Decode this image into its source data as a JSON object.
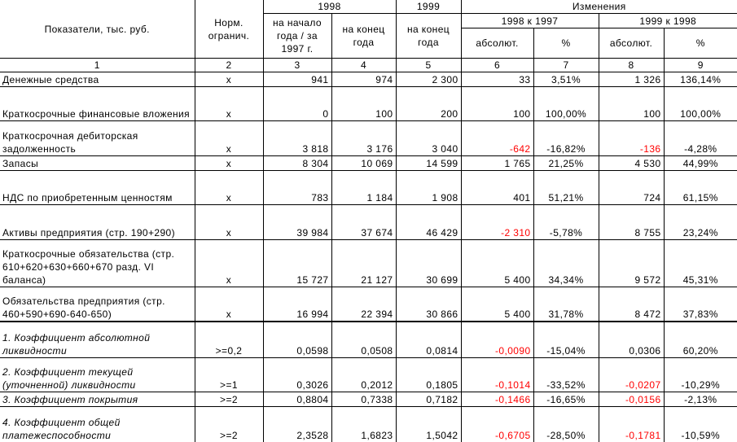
{
  "header": {
    "indicators": "Показатели, тыс. руб.",
    "norm": "Норм. огранич.",
    "y1998": "1998",
    "y1999": "1999",
    "changes": "Изменения",
    "start_year": "на начало года / за 1997 г.",
    "end_year_1998": "на конец года",
    "end_year_1999": "на конец года",
    "chg_98_97": "1998 к 1997",
    "chg_99_98": "1999 к 1998",
    "abs1": "абсолют.",
    "pct1": "%",
    "abs2": "абсолют.",
    "pct2": "%"
  },
  "col_numbers": [
    "1",
    "2",
    "3",
    "4",
    "5",
    "6",
    "7",
    "8",
    "9"
  ],
  "rows": [
    {
      "name": "Денежные средства",
      "norm": "x",
      "v3": "941",
      "v4": "974",
      "v5": "2 300",
      "v6": "33",
      "v7": "3,51%",
      "v8": "1 326",
      "v9": "136,14%"
    },
    {
      "name": "Краткосрочные финансовые вложения",
      "norm": "x",
      "v3": "0",
      "v4": "100",
      "v5": "200",
      "v6": "100",
      "v7": "100,00%",
      "v8": "100",
      "v9": "100,00%"
    },
    {
      "name": "Краткосрочная дебиторская задолженность",
      "norm": "x",
      "v3": "3 818",
      "v4": "3 176",
      "v5": "3 040",
      "v6": "-642",
      "v7": "-16,82%",
      "v8": "-136",
      "v9": "-4,28%"
    },
    {
      "name": "Запасы",
      "norm": "x",
      "v3": "8 304",
      "v4": "10 069",
      "v5": "14 599",
      "v6": "1 765",
      "v7": "21,25%",
      "v8": "4 530",
      "v9": "44,99%"
    },
    {
      "name": "НДС по приобретенным ценностям",
      "norm": "x",
      "v3": "783",
      "v4": "1 184",
      "v5": "1 908",
      "v6": "401",
      "v7": "51,21%",
      "v8": "724",
      "v9": "61,15%"
    },
    {
      "name": "Активы предприятия (стр. 190+290)",
      "norm": "x",
      "v3": "39 984",
      "v4": "37 674",
      "v5": "46 429",
      "v6": "-2 310",
      "v7": "-5,78%",
      "v8": "8 755",
      "v9": "23,24%"
    },
    {
      "name": "Краткосрочные обязательства (стр. 610+620+630+660+670 разд. VI баланса)",
      "norm": "x",
      "v3": "15 727",
      "v4": "21 127",
      "v5": "30 699",
      "v6": "5 400",
      "v7": "34,34%",
      "v8": "9 572",
      "v9": "45,31%"
    },
    {
      "name": "Обязательства предприятия (стр. 460+590+690-640-650)",
      "norm": "x",
      "v3": "16 994",
      "v4": "22 394",
      "v5": "30 866",
      "v6": "5 400",
      "v7": "31,78%",
      "v8": "8 472",
      "v9": "37,83%"
    },
    {
      "name": "1. Коэффициент абсолютной ликвидности",
      "norm": ">=0,2",
      "v3": "0,0598",
      "v4": "0,0508",
      "v5": "0,0814",
      "v6": "-0,0090",
      "v7": "-15,04%",
      "v8": "0,0306",
      "v9": "60,20%"
    },
    {
      "name": "2. Коэффициент текущей (уточненной) ликвидности",
      "norm": ">=1",
      "v3": "0,3026",
      "v4": "0,2012",
      "v5": "0,1805",
      "v6": "-0,1014",
      "v7": "-33,52%",
      "v8": "-0,0207",
      "v9": "-10,29%"
    },
    {
      "name": "3. Коэффициент покрытия",
      "norm": ">=2",
      "v3": "0,8804",
      "v4": "0,7338",
      "v5": "0,7182",
      "v6": "-0,1466",
      "v7": "-16,65%",
      "v8": "-0,0156",
      "v9": "-2,13%"
    },
    {
      "name": "4. Коэффициент общей платежеспособности",
      "norm": ">=2",
      "v3": "2,3528",
      "v4": "1,6823",
      "v5": "1,5042",
      "v6": "-0,6705",
      "v7": "-28,50%",
      "v8": "-0,1781",
      "v9": "-10,59%"
    }
  ],
  "colors": {
    "negative": "#ff0000",
    "text": "#000000",
    "border": "#000000"
  }
}
